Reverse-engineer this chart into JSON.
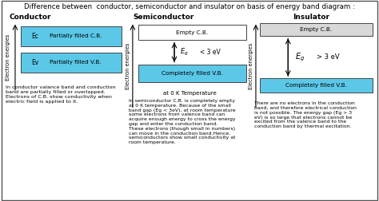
{
  "title": "Difference between  conductor, semiconductor and insulator on basis of energy band diagram :",
  "bg_color": "#f0f0e8",
  "band_color": "#5bc8e8",
  "white": "#ffffff",
  "gray_cb": "#d8d8d8",
  "sections": [
    "Conductor",
    "Semiconductor",
    "Insulator"
  ],
  "conductor": {
    "cb_label": "Partially filled C.B.",
    "vb_label": "Partially filled V.B.",
    "ec_label": "Ec",
    "ev_label": "Ev",
    "description": "In conductor valance band and conduction\nband are partially filled or overlapped.\nElectrons of C.B. show conductivity when\nelectric field is applied to it."
  },
  "semiconductor": {
    "cb_label": "Empty C.B.",
    "vb_label": "Completely filled V.B.",
    "eg_label": "< 3 eV",
    "temp_label": "at 0 K Temperature",
    "description": "In semiconductor C.B. is completely empty\nat 0 K temperature. Because of the small\nband gap (Eg < 3eV), at room temperature\nsome electrons from valence band can\nacquire enough energy to cross the energy\ngap and enter the conduction band.\nThese electrons (though small in numbers)\ncan move in the conduction band.Hence,\nsemiconductors show small conductivity at\nroom temperature."
  },
  "insulator": {
    "cb_label": "Empty C.B.",
    "vb_label": "Completely filled V.B.",
    "eg_label": "> 3 eV",
    "description": "There are no electrons in the conduction\nband, and therefore electrical conduction\nis not possible. The energy gap (Eg > 3\neV) is so large that electrons cannot be\nexcited from the valence band to the\nconduction band by thermal excitation."
  }
}
